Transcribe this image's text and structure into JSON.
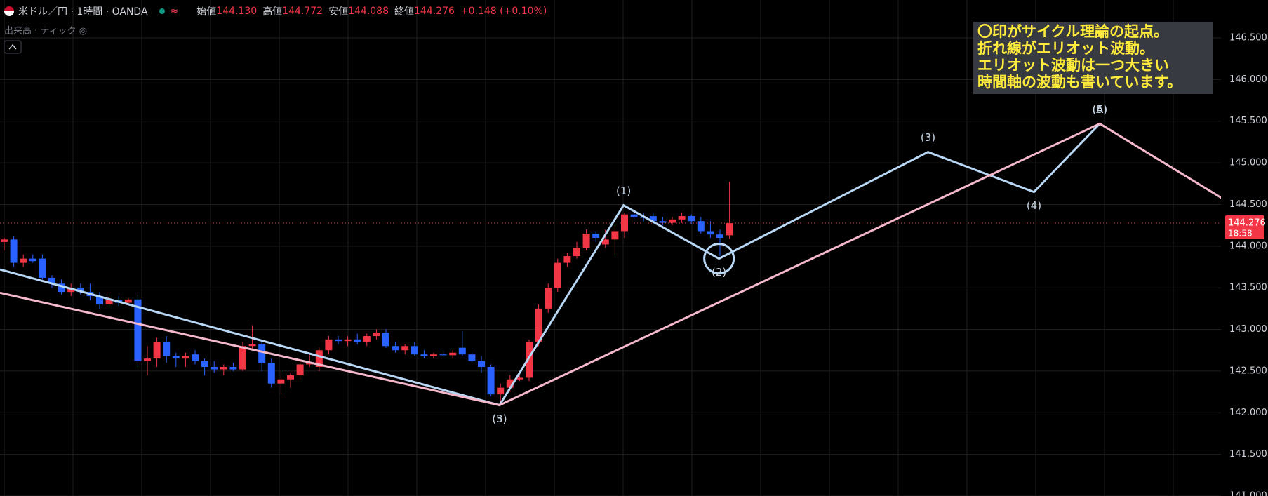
{
  "header": {
    "symbol": "米ドル／円 · 1時間 · OANDA",
    "ohlc": [
      {
        "label": "始値",
        "value": "144.130"
      },
      {
        "label": "高値",
        "value": "144.772"
      },
      {
        "label": "安値",
        "value": "144.088"
      },
      {
        "label": "終値",
        "value": "144.276"
      }
    ],
    "change": "+0.148 (+0.10%)",
    "volume": "出来高 · ティック"
  },
  "chart_data": {
    "type": "candlestick",
    "ylim": [
      141.0,
      146.955
    ],
    "yticks": [
      {
        "value": 141.0,
        "label": "141.000"
      },
      {
        "value": 141.5,
        "label": "141.500"
      },
      {
        "value": 142.0,
        "label": "142.000"
      },
      {
        "value": 142.5,
        "label": "142.500"
      },
      {
        "value": 143.0,
        "label": "143.000"
      },
      {
        "value": 143.5,
        "label": "143.500"
      },
      {
        "value": 144.0,
        "label": "144.000"
      },
      {
        "value": 144.5,
        "label": "144.500"
      },
      {
        "value": 145.0,
        "label": "145.000"
      },
      {
        "value": 145.5,
        "label": "145.500"
      },
      {
        "value": 146.0,
        "label": "146.000"
      },
      {
        "value": 146.5,
        "label": "146.500"
      }
    ],
    "grid": true,
    "up_color": "#f23645",
    "down_color": "#2962ff",
    "open": [
      144.05,
      144.08,
      143.8,
      143.85,
      143.85,
      143.62,
      143.55,
      143.45,
      143.5,
      143.45,
      143.4,
      143.3,
      143.35,
      143.32,
      143.36,
      142.62,
      142.65,
      142.85,
      142.68,
      142.65,
      142.7,
      142.62,
      142.55,
      142.52,
      142.55,
      142.52,
      142.8,
      142.82,
      142.6,
      142.35,
      142.4,
      142.45,
      142.58,
      142.55,
      142.75,
      142.88,
      142.86,
      142.88,
      142.85,
      142.92,
      142.96,
      142.8,
      142.75,
      142.8,
      142.7,
      142.68,
      142.7,
      142.69,
      142.78,
      142.7,
      142.62,
      142.55,
      142.22,
      142.3,
      142.4,
      142.42,
      142.85,
      143.25,
      143.5,
      143.8,
      143.88,
      143.98,
      144.15,
      144.02,
      144.08,
      144.18,
      144.38,
      144.35,
      144.36,
      144.3,
      144.28,
      144.32,
      144.36,
      144.3,
      144.18,
      144.14,
      144.13
    ],
    "high": [
      144.1,
      144.12,
      143.9,
      143.9,
      143.9,
      143.65,
      143.6,
      143.55,
      143.55,
      143.55,
      143.45,
      143.4,
      143.4,
      143.38,
      143.42,
      142.8,
      142.9,
      142.92,
      142.72,
      142.72,
      142.75,
      142.65,
      142.62,
      142.58,
      142.6,
      142.85,
      143.05,
      142.88,
      142.65,
      142.5,
      142.48,
      142.62,
      142.72,
      142.78,
      142.92,
      142.92,
      142.92,
      142.95,
      142.95,
      143.0,
      143.0,
      142.85,
      142.82,
      142.85,
      142.75,
      142.72,
      142.75,
      142.75,
      142.98,
      142.72,
      142.68,
      142.58,
      142.35,
      142.45,
      142.45,
      142.88,
      143.3,
      143.55,
      143.85,
      143.92,
      144.05,
      144.2,
      144.18,
      144.2,
      144.25,
      144.4,
      144.42,
      144.4,
      144.4,
      144.35,
      144.35,
      144.4,
      144.38,
      144.35,
      144.3,
      144.2,
      144.772
    ],
    "low": [
      143.95,
      143.75,
      143.75,
      143.8,
      143.6,
      143.5,
      143.42,
      143.4,
      143.42,
      143.35,
      143.25,
      143.28,
      143.28,
      143.3,
      142.55,
      142.45,
      142.55,
      142.6,
      142.55,
      142.55,
      142.58,
      142.45,
      142.48,
      142.45,
      142.5,
      142.5,
      142.75,
      142.5,
      142.3,
      142.22,
      142.3,
      142.4,
      142.55,
      142.5,
      142.7,
      142.82,
      142.8,
      142.82,
      142.8,
      142.88,
      142.78,
      142.72,
      142.7,
      142.68,
      142.65,
      142.65,
      142.68,
      142.65,
      142.68,
      142.6,
      142.48,
      142.2,
      142.1,
      142.25,
      142.38,
      142.38,
      142.8,
      143.2,
      143.45,
      143.75,
      143.85,
      143.95,
      144.05,
      143.98,
      143.9,
      144.1,
      144.3,
      144.3,
      144.28,
      144.25,
      144.25,
      144.28,
      144.26,
      144.15,
      144.1,
      143.88,
      144.088
    ],
    "close": [
      144.08,
      143.8,
      143.85,
      143.82,
      143.62,
      143.55,
      143.45,
      143.5,
      143.45,
      143.4,
      143.3,
      143.35,
      143.32,
      143.36,
      142.62,
      142.65,
      142.85,
      142.68,
      142.65,
      142.68,
      142.62,
      142.55,
      142.52,
      142.55,
      142.52,
      142.8,
      142.82,
      142.6,
      142.35,
      142.4,
      142.45,
      142.58,
      142.6,
      142.75,
      142.88,
      142.86,
      142.88,
      142.85,
      142.92,
      142.96,
      142.8,
      142.75,
      142.8,
      142.7,
      142.68,
      142.7,
      142.69,
      142.72,
      142.7,
      142.62,
      142.55,
      142.22,
      142.3,
      142.4,
      142.42,
      142.85,
      143.25,
      143.5,
      143.8,
      143.88,
      143.98,
      144.15,
      144.1,
      144.08,
      144.18,
      144.38,
      144.35,
      144.34,
      144.3,
      144.28,
      144.32,
      144.36,
      144.3,
      144.18,
      144.14,
      144.1,
      144.276
    ],
    "last_price": {
      "value": 144.276,
      "label": "144.276"
    },
    "countdown": "18:58",
    "waves": [
      {
        "color": "#b8d7f5",
        "x": [
          -0.44,
          51.9,
          64.9,
          74.9,
          96.8,
          107.9,
          114.8
        ],
        "y": [
          143.72,
          142.09,
          144.49,
          143.85,
          145.13,
          144.65,
          145.47
        ],
        "circle_at": 3,
        "labels": [
          {
            "text": "(5)",
            "point": 1,
            "position": "below"
          },
          {
            "text": "(1)",
            "point": 2,
            "position": "above"
          },
          {
            "text": "(2)",
            "point": 3,
            "position": "below"
          },
          {
            "text": "(3)",
            "point": 4,
            "position": "above"
          },
          {
            "text": "(4)",
            "point": 5,
            "position": "below"
          },
          {
            "text": "(5)",
            "point": 6,
            "position": "above"
          }
        ]
      },
      {
        "color": "#f5b8cb",
        "x": [
          -0.44,
          51.9,
          114.8,
          132.4
        ],
        "y": [
          143.44,
          142.09,
          145.47,
          144.24
        ],
        "labels": [
          {
            "text": "(3)",
            "point": 1,
            "position": "below"
          },
          {
            "text": "(A)",
            "point": 2,
            "position": "above"
          }
        ]
      }
    ],
    "annotation": [
      "〇印がサイクル理論の起点。",
      "折れ線がエリオット波動。",
      "エリオット波動は一つ大きい",
      "時間軸の波動も書いています。"
    ]
  }
}
